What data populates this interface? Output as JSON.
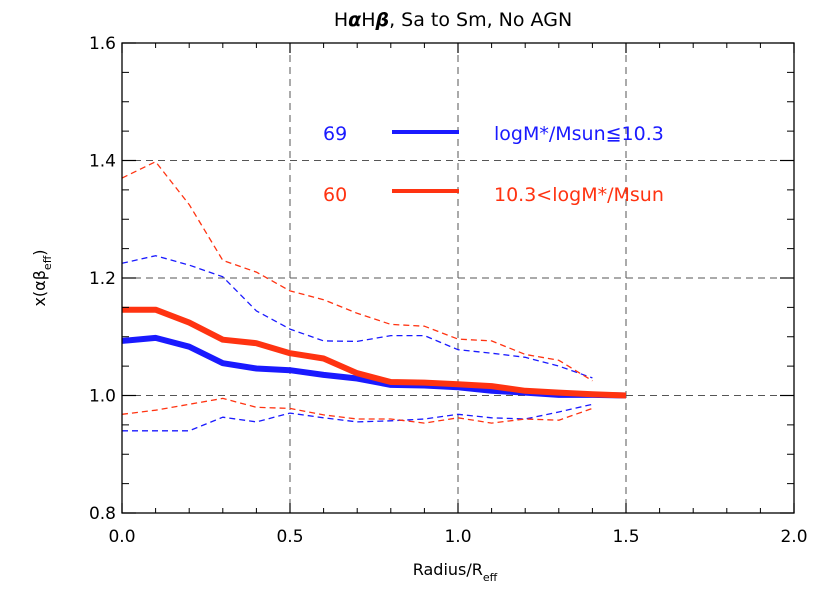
{
  "chart_data": {
    "type": "line",
    "title": "HαHβ, Sa to Sm, No AGN",
    "title_parts": {
      "a": "H",
      "b": "α",
      "c": "H",
      "d": "β",
      "e": ", Sa to Sm, No AGN"
    },
    "xlabel": "Radius/R",
    "xlabel_sub": "eff",
    "ylabel": "x(αβ",
    "ylabel_sub": "eff",
    "ylabel_close": ")",
    "xlim": [
      0.0,
      2.0
    ],
    "ylim": [
      0.8,
      1.6
    ],
    "xticks": [
      0.0,
      0.5,
      1.0,
      1.5,
      2.0
    ],
    "xtick_labels": [
      "0.0",
      "0.5",
      "1.0",
      "1.5",
      "2.0"
    ],
    "yticks": [
      0.8,
      1.0,
      1.2,
      1.4,
      1.6
    ],
    "ytick_labels": [
      "0.8",
      "1.0",
      "1.2",
      "1.4",
      "1.6"
    ],
    "grid": true,
    "legend": [
      {
        "count": "69",
        "label": "logM*/Msun≦10.3",
        "color": "#1a1aff"
      },
      {
        "count": "60",
        "label": "10.3<logM*/Msun",
        "color": "#ff3311"
      }
    ],
    "series": [
      {
        "name": "logM*/Msun≦10.3 median",
        "color": "#1a1aff",
        "style": "solid",
        "weight": "thick",
        "x": [
          0,
          0.1,
          0.2,
          0.3,
          0.4,
          0.5,
          0.6,
          0.7,
          0.8,
          0.9,
          1.0,
          1.1,
          1.2,
          1.3,
          1.4,
          1.5
        ],
        "y": [
          1.093,
          1.098,
          1.083,
          1.055,
          1.046,
          1.043,
          1.035,
          1.029,
          1.018,
          1.017,
          1.014,
          1.008,
          1.005,
          1.001,
          1.001,
          1.0
        ]
      },
      {
        "name": "10.3<logM*/Msun median",
        "color": "#ff3311",
        "style": "solid",
        "weight": "thick",
        "x": [
          0,
          0.1,
          0.2,
          0.3,
          0.4,
          0.5,
          0.6,
          0.7,
          0.8,
          0.9,
          1.0,
          1.1,
          1.2,
          1.3,
          1.4,
          1.5
        ],
        "y": [
          1.146,
          1.146,
          1.124,
          1.095,
          1.089,
          1.072,
          1.063,
          1.038,
          1.023,
          1.022,
          1.019,
          1.016,
          1.008,
          1.005,
          1.002,
          1.0
        ]
      },
      {
        "name": "logM*/Msun≦10.3 upper",
        "color": "#1a1aff",
        "style": "dashed",
        "weight": "thin",
        "x": [
          0,
          0.1,
          0.2,
          0.3,
          0.4,
          0.5,
          0.6,
          0.7,
          0.8,
          0.9,
          1.0,
          1.1,
          1.2,
          1.3,
          1.4
        ],
        "y": [
          1.225,
          1.238,
          1.222,
          1.202,
          1.144,
          1.113,
          1.093,
          1.092,
          1.102,
          1.102,
          1.078,
          1.072,
          1.065,
          1.05,
          1.03
        ]
      },
      {
        "name": "logM*/Msun≦10.3 lower",
        "color": "#1a1aff",
        "style": "dashed",
        "weight": "thin",
        "x": [
          0,
          0.1,
          0.2,
          0.3,
          0.4,
          0.5,
          0.6,
          0.7,
          0.8,
          0.9,
          1.0,
          1.1,
          1.2,
          1.3,
          1.4
        ],
        "y": [
          0.94,
          0.94,
          0.94,
          0.963,
          0.955,
          0.97,
          0.962,
          0.955,
          0.957,
          0.96,
          0.968,
          0.962,
          0.96,
          0.972,
          0.985
        ]
      },
      {
        "name": "10.3<logM*/Msun upper",
        "color": "#ff3311",
        "style": "dashed",
        "weight": "thin",
        "x": [
          0,
          0.1,
          0.2,
          0.3,
          0.4,
          0.5,
          0.6,
          0.7,
          0.8,
          0.9,
          1.0,
          1.1,
          1.2,
          1.3,
          1.4
        ],
        "y": [
          1.37,
          1.398,
          1.325,
          1.23,
          1.21,
          1.178,
          1.163,
          1.14,
          1.121,
          1.118,
          1.096,
          1.093,
          1.07,
          1.06,
          1.025
        ]
      },
      {
        "name": "10.3<logM*/Msun lower",
        "color": "#ff3311",
        "style": "dashed",
        "weight": "thin",
        "x": [
          0,
          0.1,
          0.2,
          0.3,
          0.4,
          0.5,
          0.6,
          0.7,
          0.8,
          0.9,
          1.0,
          1.1,
          1.2,
          1.3,
          1.4
        ],
        "y": [
          0.968,
          0.975,
          0.985,
          0.995,
          0.98,
          0.978,
          0.967,
          0.96,
          0.96,
          0.953,
          0.962,
          0.953,
          0.96,
          0.958,
          0.978
        ]
      }
    ]
  }
}
